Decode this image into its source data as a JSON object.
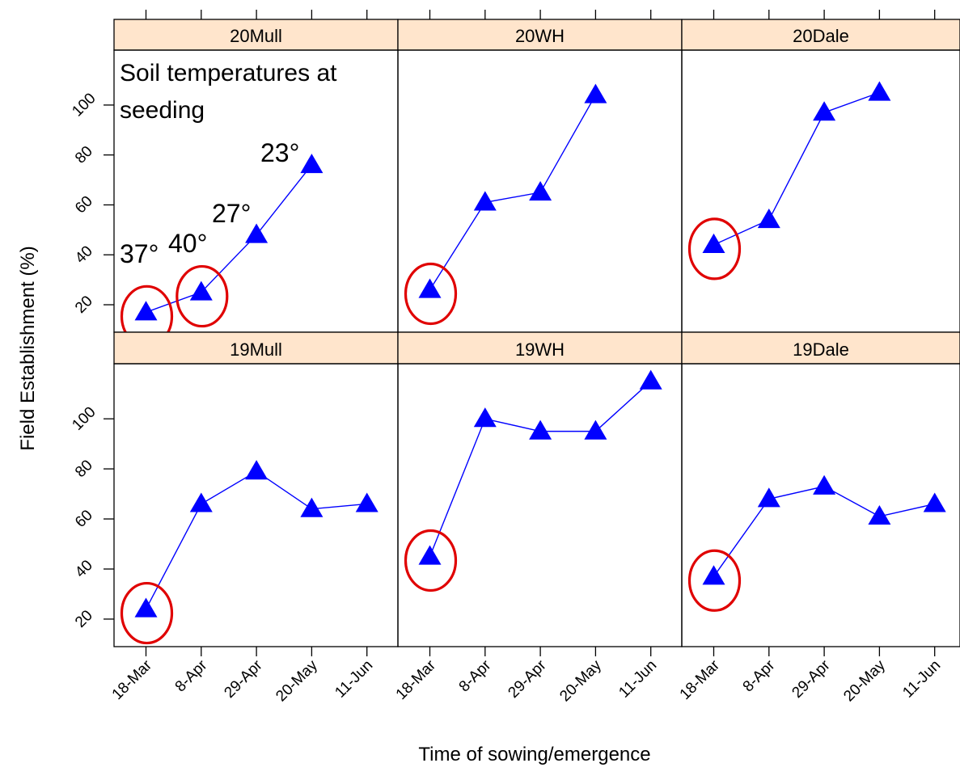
{
  "colors": {
    "strip": "#ffe5cc",
    "series": "#0000ff",
    "circle": "#e00000",
    "axis": "#000000"
  },
  "chart_data": {
    "type": "line",
    "title": "",
    "xlabel": "Time of sowing/emergence",
    "ylabel": "Field Establishment (%)",
    "x": [
      "18-Mar",
      "8-Apr",
      "29-Apr",
      "20-May",
      "11-Jun"
    ],
    "ylim": [
      9,
      122
    ],
    "yticks": [
      20,
      40,
      60,
      80,
      100
    ],
    "marker": "triangle",
    "panels": [
      {
        "name": "20Mull",
        "values": [
          17,
          25,
          48,
          76,
          null
        ],
        "circled": [
          0,
          1
        ]
      },
      {
        "name": "20WH",
        "values": [
          26,
          61,
          65,
          104,
          null
        ],
        "circled": [
          0
        ]
      },
      {
        "name": "20Dale",
        "values": [
          44,
          54,
          97,
          105,
          null
        ],
        "circled": [
          0
        ]
      },
      {
        "name": "19Mull",
        "values": [
          24,
          66,
          79,
          64,
          66
        ],
        "circled": [
          0
        ]
      },
      {
        "name": "19WH",
        "values": [
          45,
          100,
          95,
          95,
          115
        ],
        "circled": [
          0
        ]
      },
      {
        "name": "19Dale",
        "values": [
          37,
          68,
          73,
          61,
          66
        ],
        "circled": [
          0
        ]
      }
    ],
    "annotations": {
      "heading": "Soil temperatures at seeding",
      "heading_lines": [
        "Soil temperatures at",
        "seeding"
      ],
      "temperatures": [
        "37°",
        "40°",
        "27°",
        "23°"
      ]
    }
  }
}
